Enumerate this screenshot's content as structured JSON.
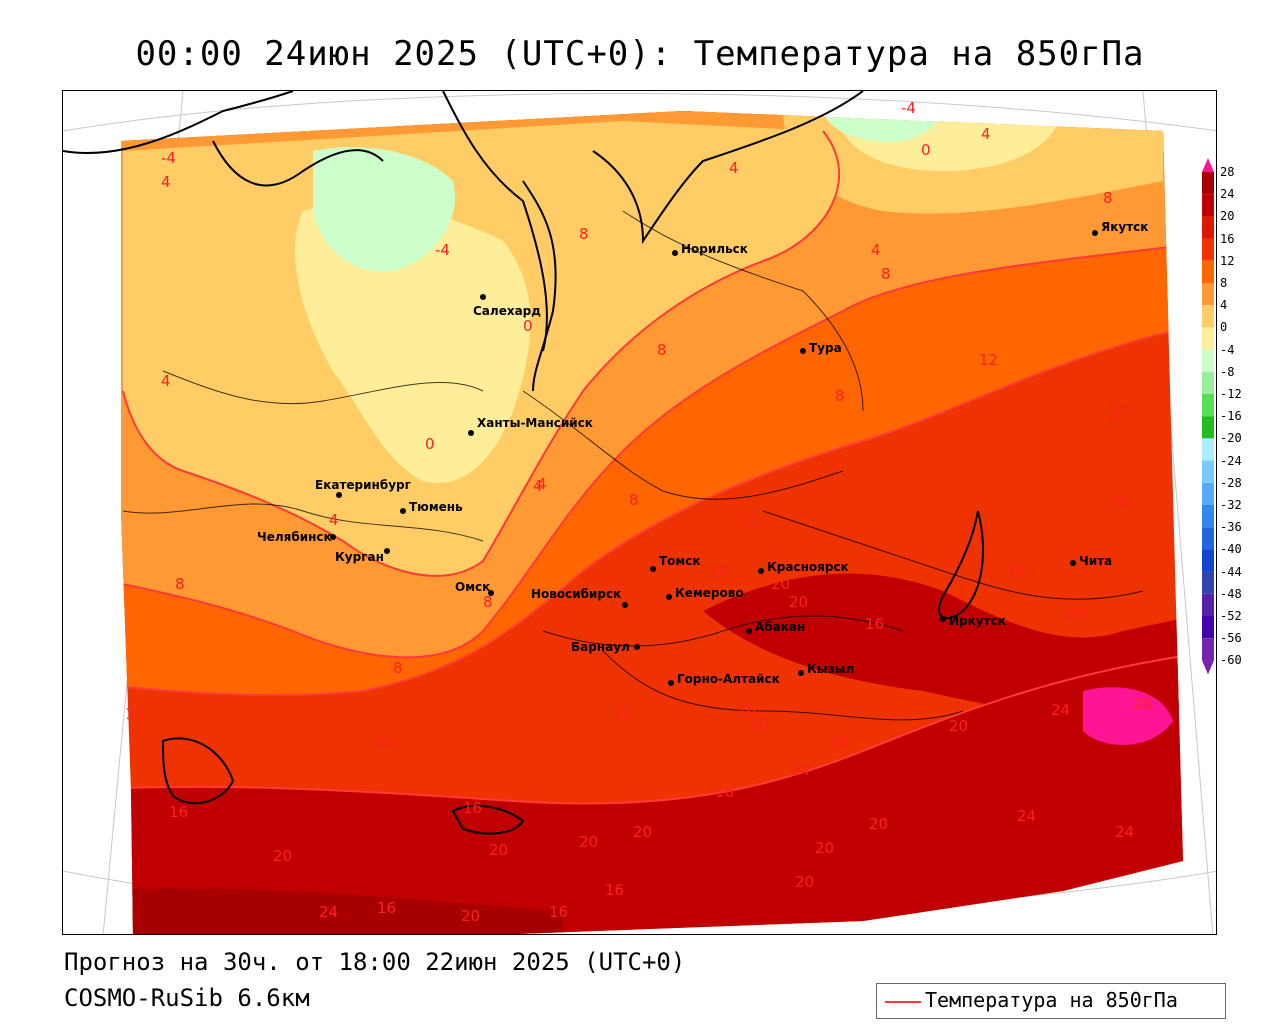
{
  "header": {
    "title": "00:00 24июн 2025 (UTC+0): Температура на 850гПа"
  },
  "footer": {
    "forecast_line": "Прогноз на 30ч. от 18:00 22июн 2025 (UTC+0)",
    "model_line": "COSMO-RuSib 6.6км",
    "legend_label": "Температура на 850гПа"
  },
  "colors": {
    "contour": "#ff3a3a",
    "iso_text": "#ff2020"
  },
  "colorbar": {
    "ticks": [
      "28",
      "24",
      "20",
      "16",
      "12",
      "8",
      "4",
      "0",
      "-4",
      "-8",
      "-12",
      "-16",
      "-20",
      "-24",
      "-28",
      "-32",
      "-36",
      "-40",
      "-44",
      "-48",
      "-52",
      "-56",
      "-60"
    ],
    "colors": [
      "#ff1493",
      "#a80000",
      "#c00000",
      "#dd1a00",
      "#ee3300",
      "#ff6600",
      "#ff9933",
      "#ffcc66",
      "#ffee99",
      "#ccffcc",
      "#99ee99",
      "#55dd55",
      "#22bb22",
      "#aaeeff",
      "#77ccff",
      "#55aaff",
      "#3388ee",
      "#2266dd",
      "#1144cc",
      "#3344aa",
      "#5522aa",
      "#4400aa",
      "#7722aa"
    ]
  },
  "cities": [
    {
      "name": "Норильск"
    },
    {
      "name": "Якутск"
    },
    {
      "name": "Салехард"
    },
    {
      "name": "Тура"
    },
    {
      "name": "Ханты-Мансийск"
    },
    {
      "name": "Екатеринбург"
    },
    {
      "name": "Тюмень"
    },
    {
      "name": "Челябинск"
    },
    {
      "name": "Курган"
    },
    {
      "name": "Омск"
    },
    {
      "name": "Томск"
    },
    {
      "name": "Новосибирск"
    },
    {
      "name": "Кемерово"
    },
    {
      "name": "Красноярск"
    },
    {
      "name": "Абакан"
    },
    {
      "name": "Барнаул"
    },
    {
      "name": "Горно-Алтайск"
    },
    {
      "name": "Кызыл"
    },
    {
      "name": "Иркутск"
    },
    {
      "name": "Чита"
    }
  ],
  "isotherm_labels": [
    {
      "text": "-4"
    },
    {
      "text": "4"
    },
    {
      "text": "0"
    },
    {
      "text": "4"
    },
    {
      "text": "4"
    },
    {
      "text": "8"
    },
    {
      "text": "-4"
    },
    {
      "text": "-4"
    },
    {
      "text": "8"
    },
    {
      "text": "4"
    },
    {
      "text": "8"
    },
    {
      "text": "4"
    },
    {
      "text": "0"
    },
    {
      "text": "8"
    },
    {
      "text": "8"
    },
    {
      "text": "12"
    },
    {
      "text": "12"
    },
    {
      "text": "0"
    },
    {
      "text": "4"
    },
    {
      "text": "8"
    },
    {
      "text": "12"
    },
    {
      "text": "16"
    },
    {
      "text": "4"
    },
    {
      "text": "16"
    },
    {
      "text": "8"
    },
    {
      "text": "20"
    },
    {
      "text": "20"
    },
    {
      "text": "8"
    },
    {
      "text": "16"
    },
    {
      "text": "16"
    },
    {
      "text": "20"
    },
    {
      "text": "8"
    },
    {
      "text": "12"
    },
    {
      "text": "16"
    },
    {
      "text": "12"
    },
    {
      "text": "20"
    },
    {
      "text": "20"
    },
    {
      "text": "24"
    },
    {
      "text": "28"
    },
    {
      "text": "24"
    },
    {
      "text": "16"
    },
    {
      "text": "16"
    },
    {
      "text": "16"
    },
    {
      "text": "20"
    },
    {
      "text": "20"
    },
    {
      "text": "20"
    },
    {
      "text": "24"
    },
    {
      "text": "20"
    },
    {
      "text": "20"
    },
    {
      "text": "24"
    },
    {
      "text": "20"
    },
    {
      "text": "20"
    },
    {
      "text": "16"
    },
    {
      "text": "20"
    },
    {
      "text": "24"
    },
    {
      "text": "16"
    },
    {
      "text": "20"
    },
    {
      "text": "16"
    },
    {
      "text": "12"
    },
    {
      "text": "4"
    }
  ]
}
